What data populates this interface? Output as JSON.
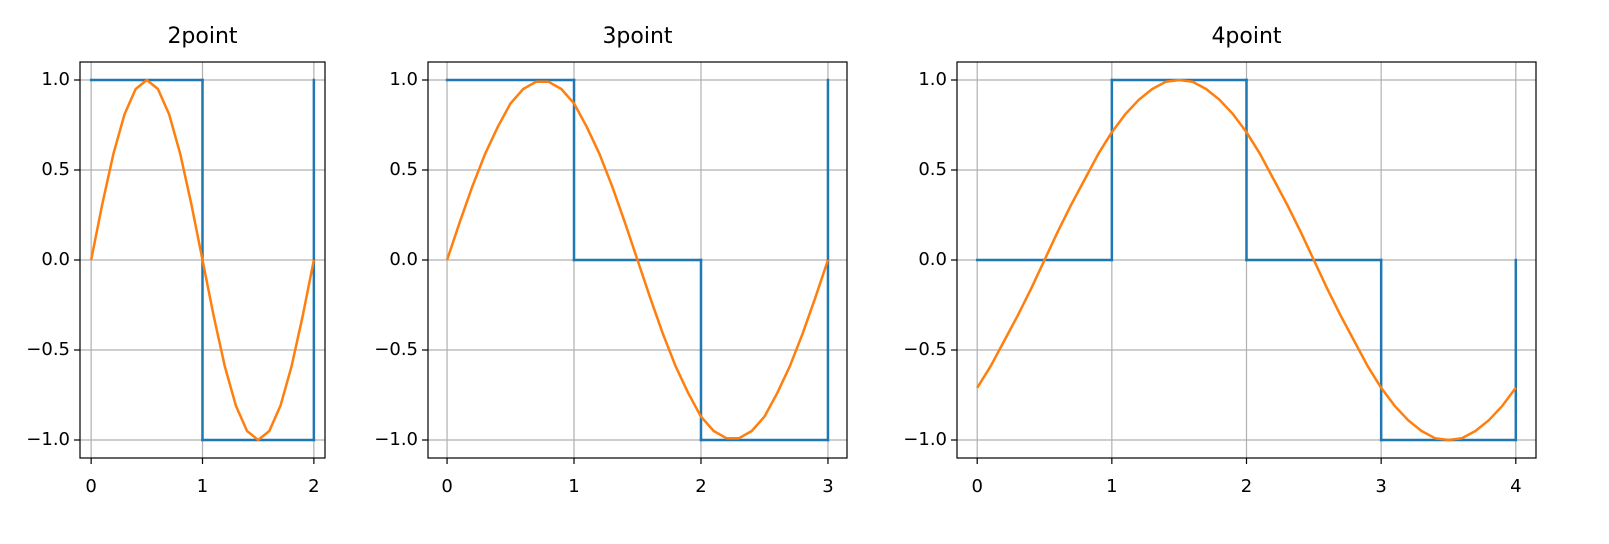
{
  "chart_data": [
    {
      "type": "line",
      "title": "2point",
      "grid": true,
      "xlim": [
        -0.1,
        2.1
      ],
      "ylim": [
        -1.1,
        1.1
      ],
      "xticks": [
        0,
        1,
        2
      ],
      "yticks": [
        {
          "value": -1,
          "label": "−1.0"
        },
        {
          "value": -0.5,
          "label": "−0.5"
        },
        {
          "value": 0,
          "label": "0.0"
        },
        {
          "value": 0.5,
          "label": "0.5"
        },
        {
          "value": 1,
          "label": "1.0"
        }
      ],
      "series": [
        {
          "color": "#1f77b4",
          "drawstyle": "steps-post",
          "x": [
            0,
            1,
            2
          ],
          "values": [
            1,
            -1,
            1
          ]
        },
        {
          "color": "#ff7f0e",
          "x": [
            0,
            0.1,
            0.2,
            0.3,
            0.4,
            0.5,
            0.6,
            0.7,
            0.8,
            0.9,
            1,
            1.1,
            1.2,
            1.3,
            1.4,
            1.5,
            1.6,
            1.7,
            1.8,
            1.9,
            2
          ],
          "values": [
            0,
            0.31,
            0.59,
            0.81,
            0.95,
            1,
            0.95,
            0.81,
            0.59,
            0.31,
            0,
            -0.31,
            -0.59,
            -0.81,
            -0.95,
            -1,
            -0.95,
            -0.81,
            -0.59,
            -0.31,
            0
          ]
        }
      ]
    },
    {
      "type": "line",
      "title": "3point",
      "grid": true,
      "xlim": [
        -0.15,
        3.15
      ],
      "ylim": [
        -1.1,
        1.1
      ],
      "xticks": [
        0,
        1,
        2,
        3
      ],
      "yticks": [
        {
          "value": -1,
          "label": "−1.0"
        },
        {
          "value": -0.5,
          "label": "−0.5"
        },
        {
          "value": 0,
          "label": "0.0"
        },
        {
          "value": 0.5,
          "label": "0.5"
        },
        {
          "value": 1,
          "label": "1.0"
        }
      ],
      "series": [
        {
          "color": "#1f77b4",
          "drawstyle": "steps-post",
          "x": [
            0,
            1,
            2,
            3
          ],
          "values": [
            1,
            0,
            -1,
            1
          ]
        },
        {
          "color": "#ff7f0e",
          "x": [
            0,
            0.1,
            0.2,
            0.3,
            0.4,
            0.5,
            0.6,
            0.7,
            0.8,
            0.9,
            1,
            1.1,
            1.2,
            1.3,
            1.4,
            1.5,
            1.6,
            1.7,
            1.8,
            1.9,
            2,
            2.1,
            2.2,
            2.3,
            2.4,
            2.5,
            2.6,
            2.7,
            2.8,
            2.9,
            3
          ],
          "values": [
            0,
            0.21,
            0.41,
            0.59,
            0.74,
            0.87,
            0.95,
            0.99,
            0.99,
            0.95,
            0.87,
            0.74,
            0.59,
            0.41,
            0.21,
            0,
            -0.21,
            -0.41,
            -0.59,
            -0.74,
            -0.87,
            -0.95,
            -0.99,
            -0.99,
            -0.95,
            -0.87,
            -0.74,
            -0.59,
            -0.41,
            -0.21,
            0
          ]
        }
      ]
    },
    {
      "type": "line",
      "title": "4point",
      "grid": true,
      "xlim": [
        -0.15,
        4.15
      ],
      "ylim": [
        -1.1,
        1.1
      ],
      "xticks": [
        0,
        1,
        2,
        3,
        4
      ],
      "yticks": [
        {
          "value": -1,
          "label": "−1.0"
        },
        {
          "value": -0.5,
          "label": "−0.5"
        },
        {
          "value": 0,
          "label": "0.0"
        },
        {
          "value": 0.5,
          "label": "0.5"
        },
        {
          "value": 1,
          "label": "1.0"
        }
      ],
      "series": [
        {
          "color": "#1f77b4",
          "drawstyle": "steps-post",
          "x": [
            0,
            1,
            2,
            3,
            4
          ],
          "values": [
            0,
            1,
            0,
            -1,
            0
          ]
        },
        {
          "color": "#ff7f0e",
          "x": [
            0,
            0.1,
            0.2,
            0.3,
            0.4,
            0.5,
            0.6,
            0.7,
            0.8,
            0.9,
            1,
            1.1,
            1.2,
            1.3,
            1.4,
            1.5,
            1.6,
            1.7,
            1.8,
            1.9,
            2,
            2.1,
            2.2,
            2.3,
            2.4,
            2.5,
            2.6,
            2.7,
            2.8,
            2.9,
            3,
            3.1,
            3.2,
            3.3,
            3.4,
            3.5,
            3.6,
            3.7,
            3.8,
            3.9,
            4
          ],
          "values": [
            -0.71,
            -0.59,
            -0.45,
            -0.31,
            -0.16,
            0,
            0.16,
            0.31,
            0.45,
            0.59,
            0.71,
            0.81,
            0.89,
            0.95,
            0.99,
            1,
            0.99,
            0.95,
            0.89,
            0.81,
            0.71,
            0.59,
            0.45,
            0.31,
            0.16,
            0,
            -0.16,
            -0.31,
            -0.45,
            -0.59,
            -0.71,
            -0.81,
            -0.89,
            -0.95,
            -0.99,
            -1,
            -0.99,
            -0.95,
            -0.89,
            -0.81,
            -0.71
          ]
        }
      ]
    }
  ]
}
